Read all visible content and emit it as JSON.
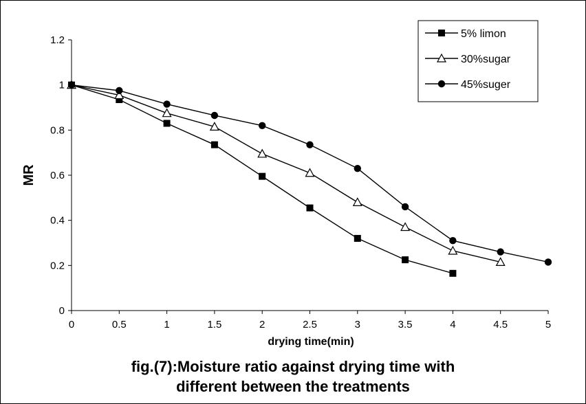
{
  "chart_data": {
    "type": "line",
    "xlabel": "drying time(min)",
    "ylabel": "MR",
    "xlim": [
      0,
      5
    ],
    "ylim": [
      0,
      1.2
    ],
    "x_ticks": [
      "0",
      "0.5",
      "1",
      "1.5",
      "2",
      "2.5",
      "3",
      "3.5",
      "4",
      "4.5",
      "5"
    ],
    "y_ticks": [
      "0",
      "0.2",
      "0.4",
      "0.6",
      "0.8",
      "1",
      "1.2"
    ],
    "grid": false,
    "legend_position": "top-right",
    "series": [
      {
        "name": "5% limon",
        "marker": "square",
        "color": "#000000",
        "x": [
          0,
          0.5,
          1,
          1.5,
          2,
          2.5,
          3,
          3.5,
          4
        ],
        "y": [
          1.0,
          0.935,
          0.83,
          0.735,
          0.595,
          0.455,
          0.32,
          0.225,
          0.165
        ]
      },
      {
        "name": "30%sugar",
        "marker": "triangle",
        "color": "#000000",
        "x": [
          0,
          0.5,
          1,
          1.5,
          2,
          2.5,
          3,
          3.5,
          4,
          4.5
        ],
        "y": [
          1.0,
          0.955,
          0.875,
          0.815,
          0.695,
          0.61,
          0.48,
          0.37,
          0.265,
          0.215
        ]
      },
      {
        "name": "45%suger",
        "marker": "circle",
        "color": "#000000",
        "x": [
          0,
          0.5,
          1,
          1.5,
          2,
          2.5,
          3,
          3.5,
          4,
          4.5,
          5
        ],
        "y": [
          1.0,
          0.975,
          0.915,
          0.865,
          0.82,
          0.735,
          0.63,
          0.46,
          0.31,
          0.26,
          0.215
        ]
      }
    ]
  },
  "caption": {
    "line1": "fig.(7):Moisture ratio against drying time with",
    "line2": "different between the treatments"
  }
}
